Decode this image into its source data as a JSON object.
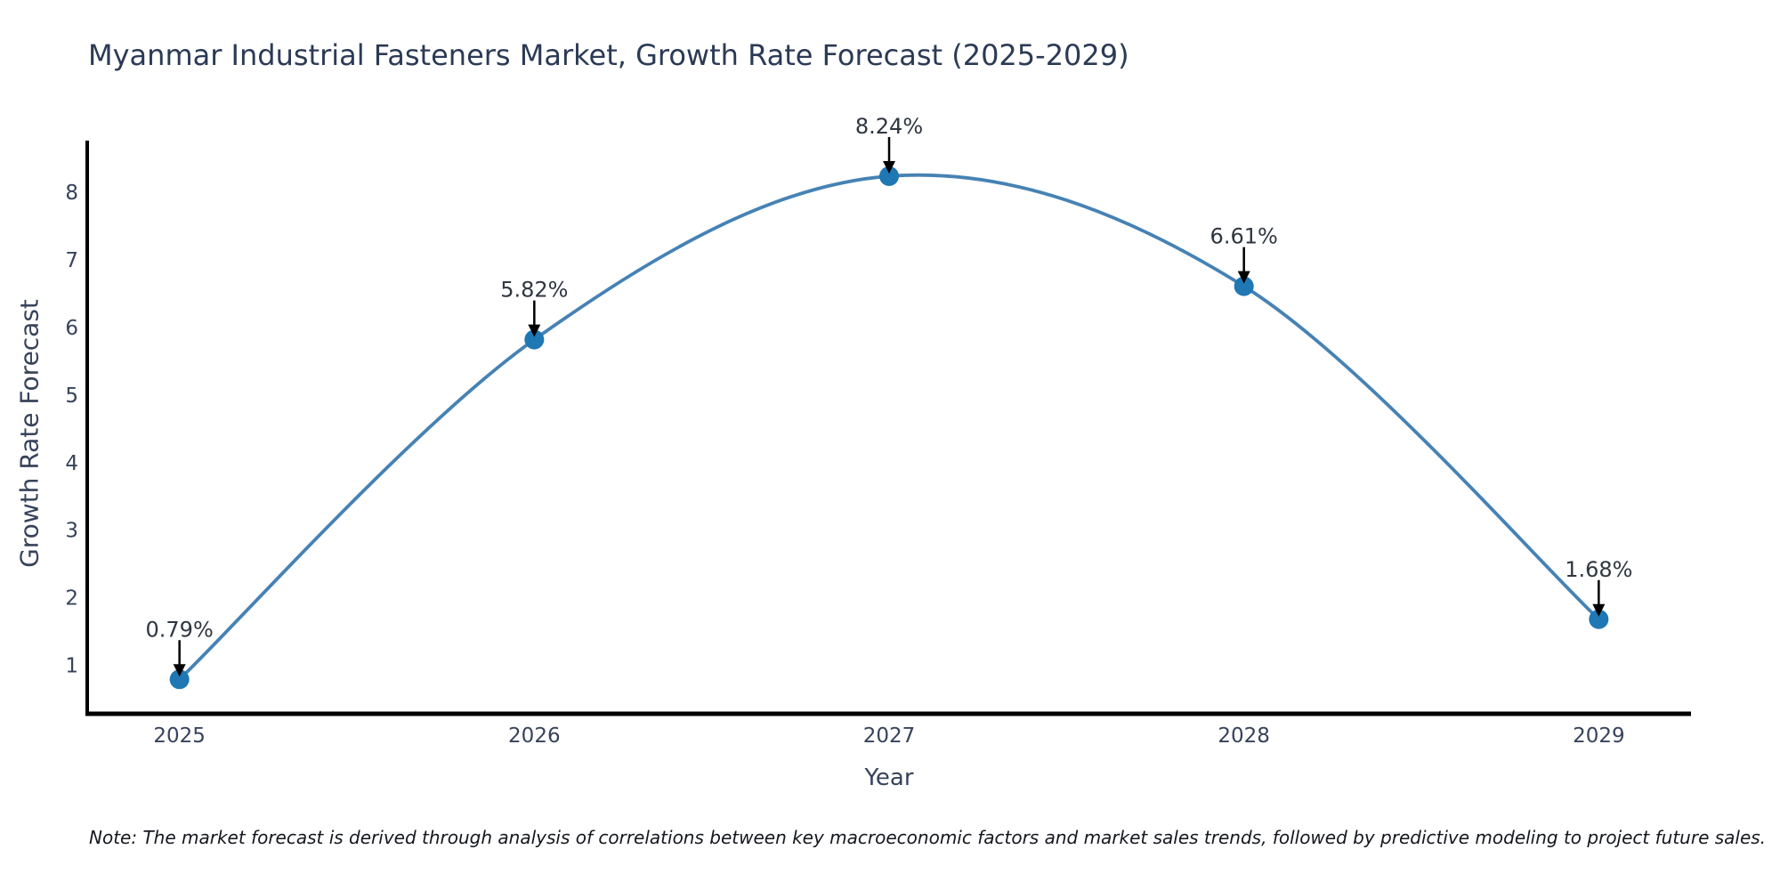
{
  "chart_data": {
    "type": "line",
    "title": "Myanmar Industrial Fasteners Market, Growth Rate Forecast (2025-2029)",
    "xlabel": "Year",
    "ylabel": "Growth Rate Forecast",
    "categories": [
      2025,
      2026,
      2027,
      2028,
      2029
    ],
    "values": [
      0.79,
      5.82,
      8.24,
      6.61,
      1.68
    ],
    "point_labels": [
      "0.79%",
      "5.82%",
      "8.24%",
      "6.61%",
      "1.68%"
    ],
    "yticks": [
      1,
      2,
      3,
      4,
      5,
      6,
      7,
      8
    ],
    "xlim": [
      2024.74,
      2029.26
    ],
    "ylim": [
      0.28,
      8.74
    ],
    "line_shape": "spline",
    "grid": false,
    "legend": "none",
    "colors": {
      "line": "#4682b4",
      "marker": "#1f77b4",
      "arrow": "#000000",
      "axis": "#000000",
      "tick_text": "#36435a",
      "title_text": "#2b3a55"
    },
    "note": "Note: The market forecast is derived through analysis of correlations between key macroeconomic factors and market sales trends, followed by predictive modeling to project future sales."
  }
}
